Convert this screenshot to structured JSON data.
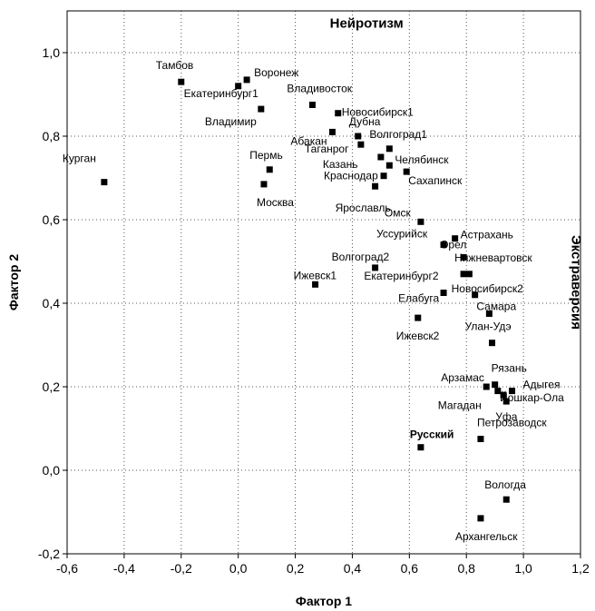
{
  "chart_data": {
    "type": "scatter",
    "title": "",
    "xlabel": "Фактор 1",
    "ylabel": "Фактор 2",
    "xlim": [
      -0.6,
      1.2
    ],
    "ylim": [
      -0.2,
      1.1
    ],
    "xticks": [
      "-0,6",
      "-0,4",
      "-0,2",
      "0,0",
      "0,2",
      "0,4",
      "0,6",
      "0,8",
      "1,0",
      "1,2"
    ],
    "yticks": [
      "-0,2",
      "0,0",
      "0,2",
      "0,4",
      "0,6",
      "0,8",
      "1,0"
    ],
    "grid": true,
    "grid_style": "dotted",
    "annotations": [
      {
        "text": "Нейротизм",
        "x": 0.45,
        "y": 1.06
      },
      {
        "text": "Экстраверсия",
        "x": 1.17,
        "y": 0.45,
        "rotated": true
      }
    ],
    "points": [
      {
        "label": "Тамбов",
        "x": -0.2,
        "y": 0.93
      },
      {
        "label": "Воронеж",
        "x": 0.03,
        "y": 0.935
      },
      {
        "label": "Екатеринбург1",
        "x": 0.0,
        "y": 0.92
      },
      {
        "label": "Владимир",
        "x": 0.08,
        "y": 0.865
      },
      {
        "label": "Владивосток",
        "x": 0.26,
        "y": 0.875
      },
      {
        "label": "Новосибирск1",
        "x": 0.35,
        "y": 0.855
      },
      {
        "label": "Абакан",
        "x": 0.33,
        "y": 0.81
      },
      {
        "label": "Дубна",
        "x": 0.42,
        "y": 0.8
      },
      {
        "label": "Таганрог",
        "x": 0.43,
        "y": 0.78
      },
      {
        "label": "Волгоград1",
        "x": 0.53,
        "y": 0.77
      },
      {
        "label": "Казань",
        "x": 0.5,
        "y": 0.75
      },
      {
        "label": "Челябинск",
        "x": 0.53,
        "y": 0.73
      },
      {
        "label": "Курган",
        "x": -0.47,
        "y": 0.69
      },
      {
        "label": "Пермь",
        "x": 0.11,
        "y": 0.72
      },
      {
        "label": "Москва",
        "x": 0.09,
        "y": 0.685
      },
      {
        "label": "Краснодар",
        "x": 0.51,
        "y": 0.705
      },
      {
        "label": "Сахапинск",
        "x": 0.59,
        "y": 0.715
      },
      {
        "label": "Ярославль",
        "x": 0.48,
        "y": 0.68
      },
      {
        "label": "Омск",
        "x": 0.64,
        "y": 0.595
      },
      {
        "label": "Астрахань",
        "x": 0.76,
        "y": 0.555
      },
      {
        "label": "Уссурийск",
        "x": 0.72,
        "y": 0.54
      },
      {
        "label": "Орел",
        "x": 0.79,
        "y": 0.51
      },
      {
        "label": "Волгоград2",
        "x": 0.48,
        "y": 0.485
      },
      {
        "label": "Нижневартовск",
        "x": 0.79,
        "y": 0.47
      },
      {
        "label": "Екатеринбург2",
        "x": 0.81,
        "y": 0.47
      },
      {
        "label": "Ижевск1",
        "x": 0.27,
        "y": 0.445
      },
      {
        "label": "Новосибирск2",
        "x": 0.83,
        "y": 0.42
      },
      {
        "label": "Елабуга",
        "x": 0.72,
        "y": 0.425
      },
      {
        "label": "Самара",
        "x": 0.88,
        "y": 0.375
      },
      {
        "label": "Ижевск2",
        "x": 0.63,
        "y": 0.365
      },
      {
        "label": "Улан-Удэ",
        "x": 0.89,
        "y": 0.305
      },
      {
        "label": "Рязань",
        "x": 0.9,
        "y": 0.205
      },
      {
        "label": "Арзамас",
        "x": 0.87,
        "y": 0.2
      },
      {
        "label": "Адыгея",
        "x": 0.96,
        "y": 0.19
      },
      {
        "label": "Магадан",
        "x": 0.91,
        "y": 0.19
      },
      {
        "label": "Йошкар-Ола",
        "x": 0.93,
        "y": 0.18
      },
      {
        "label": "Уфа",
        "x": 0.94,
        "y": 0.165
      },
      {
        "label": "Петрозаводск",
        "x": 0.85,
        "y": 0.075
      },
      {
        "label": "Русский",
        "x": 0.64,
        "y": 0.055,
        "bold": true
      },
      {
        "label": "Вологда",
        "x": 0.94,
        "y": -0.07
      },
      {
        "label": "Архангельск",
        "x": 0.85,
        "y": -0.115
      }
    ]
  }
}
